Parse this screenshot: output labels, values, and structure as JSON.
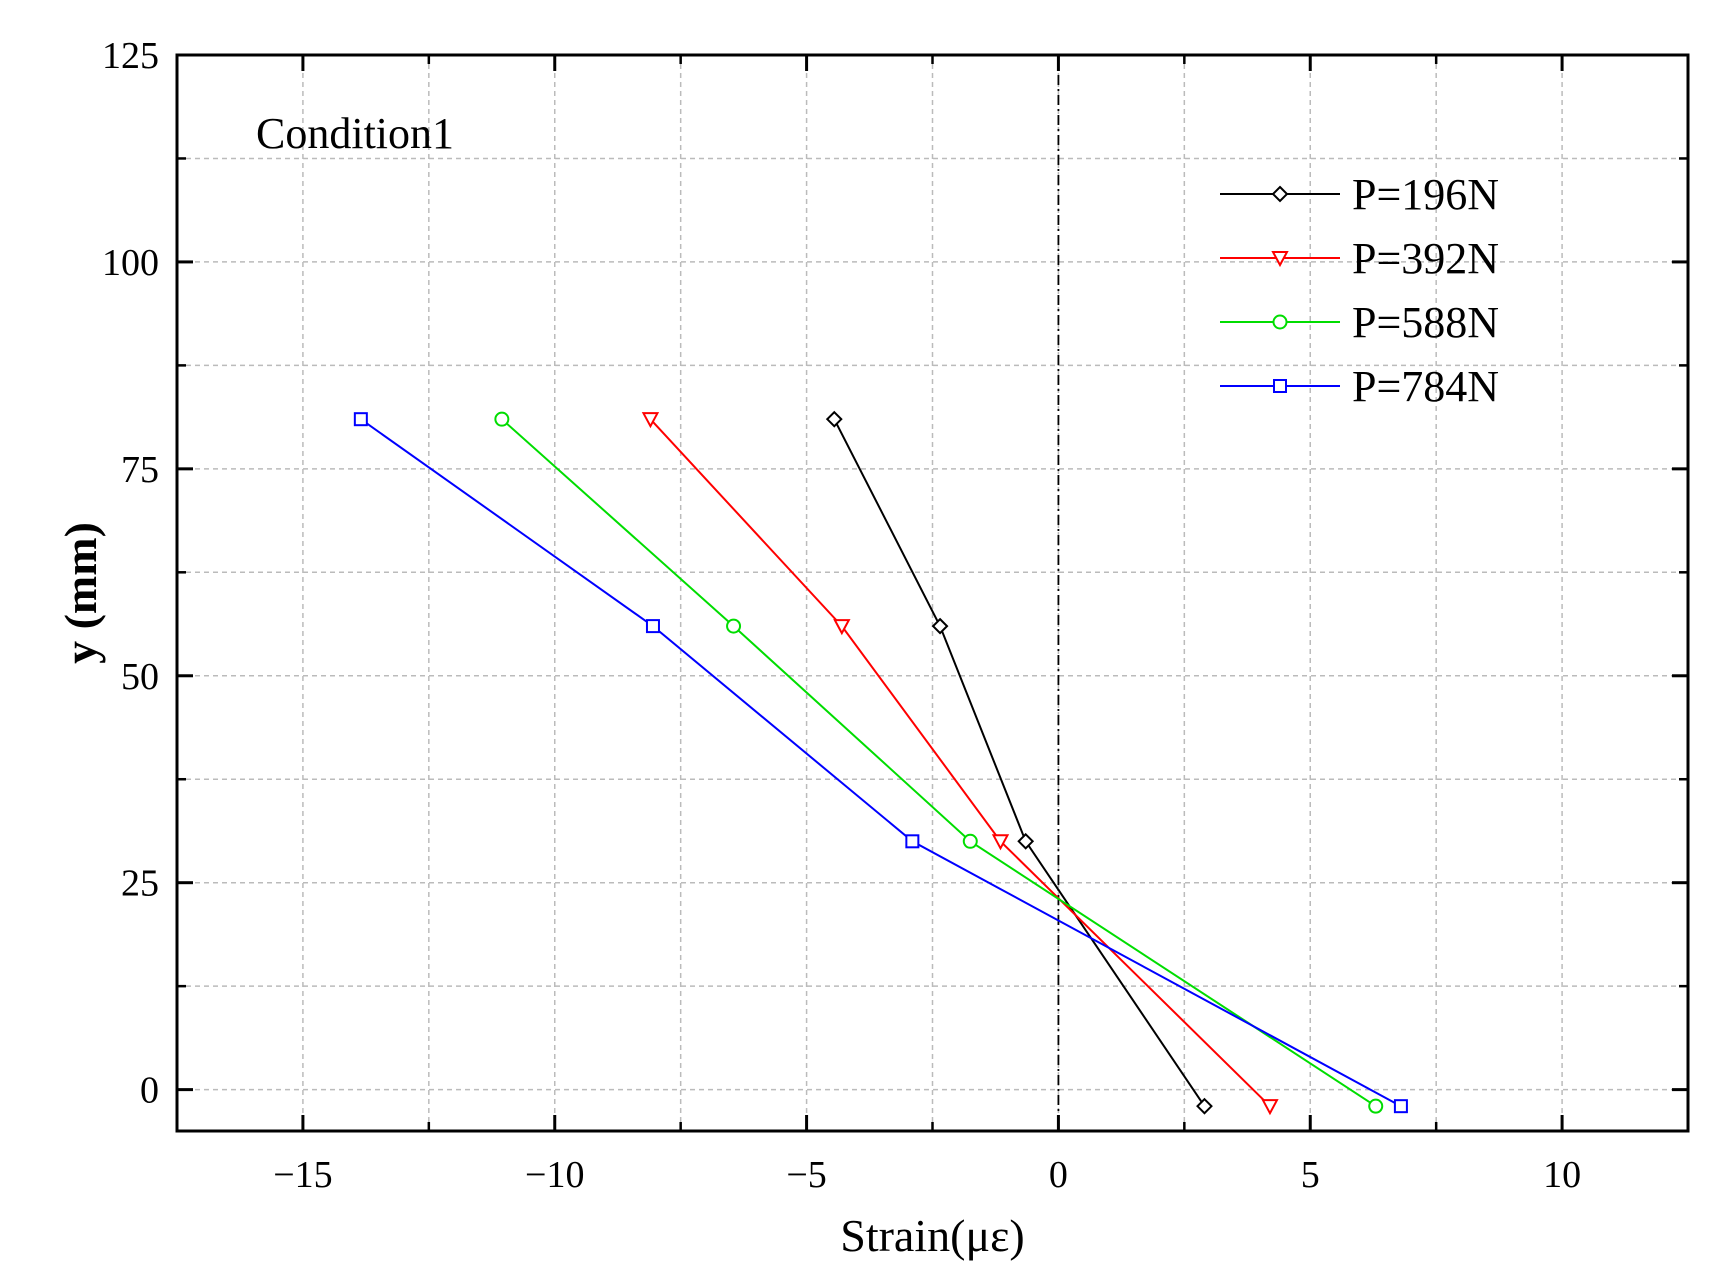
{
  "chart_data": {
    "type": "line",
    "title": "",
    "xlabel": "Strain(με)",
    "ylabel": "y (mm)",
    "xlim": [
      -17.5,
      12.5
    ],
    "ylim": [
      -5,
      125
    ],
    "xticks": [
      -15,
      -10,
      -5,
      0,
      5,
      10
    ],
    "xtick_labels": [
      "−15",
      "−10",
      "−5",
      "0",
      "5",
      "10"
    ],
    "yticks": [
      0,
      25,
      50,
      75,
      100,
      125
    ],
    "ytick_labels": [
      "0",
      "25",
      "50",
      "75",
      "100",
      "125"
    ],
    "x_minor_grid": [
      -12.5,
      -7.5,
      -2.5,
      2.5,
      7.5
    ],
    "y_minor_grid": [
      12.5,
      37.5,
      62.5,
      87.5,
      112.5
    ],
    "grid": true,
    "reference_line_x": 0,
    "legend_position": "top-right",
    "annotation": "Condition1",
    "series": [
      {
        "name": "P=196N",
        "color": "#000000",
        "marker": "diamond",
        "x": [
          -4.45,
          -2.35,
          -0.65,
          2.9
        ],
        "y": [
          81,
          56,
          30,
          -2
        ]
      },
      {
        "name": "P=392N",
        "color": "#ff0000",
        "marker": "triangle-down",
        "x": [
          -8.1,
          -4.3,
          -1.15,
          4.2
        ],
        "y": [
          81,
          56,
          30,
          -2
        ]
      },
      {
        "name": "P=588N",
        "color": "#00dd00",
        "marker": "circle",
        "x": [
          -11.05,
          -6.45,
          -1.75,
          6.3
        ],
        "y": [
          81,
          56,
          30,
          -2
        ]
      },
      {
        "name": "P=784N",
        "color": "#0000ff",
        "marker": "square",
        "x": [
          -13.85,
          -8.05,
          -2.9,
          6.8
        ],
        "y": [
          81,
          56,
          30,
          -2
        ]
      }
    ]
  }
}
